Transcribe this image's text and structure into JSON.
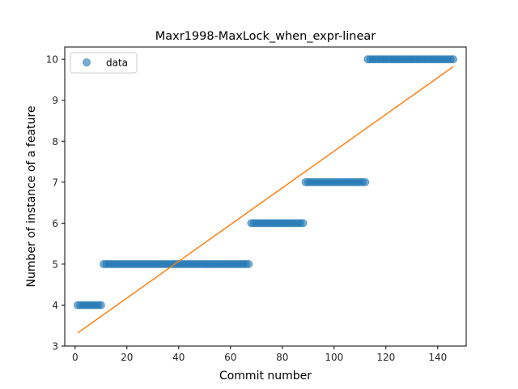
{
  "chart_data": {
    "type": "scatter",
    "title": "Maxr1998-MaxLock_when_expr-linear",
    "xlabel": "Commit number",
    "ylabel": "Number of instance of a feature",
    "xlim": [
      -4,
      151
    ],
    "ylim": [
      3,
      10.3
    ],
    "xticks": [
      0,
      20,
      40,
      60,
      80,
      100,
      120,
      140
    ],
    "yticks": [
      3,
      4,
      5,
      6,
      7,
      8,
      9,
      10
    ],
    "grid": false,
    "legend": {
      "position": "top-left",
      "entries": [
        "data"
      ]
    },
    "colors": {
      "points": "#1f77b4",
      "fit": "#ff7f0e"
    },
    "series": [
      {
        "name": "data",
        "kind": "points",
        "segments": [
          {
            "x_start": 1,
            "x_end": 10,
            "y": 4
          },
          {
            "x_start": 11,
            "x_end": 67,
            "y": 5
          },
          {
            "x_start": 68,
            "x_end": 88,
            "y": 6
          },
          {
            "x_start": 89,
            "x_end": 112,
            "y": 7
          },
          {
            "x_start": 113,
            "x_end": 146,
            "y": 10
          }
        ]
      },
      {
        "kind": "fit-line",
        "x": [
          1,
          146
        ],
        "y": [
          3.32,
          9.82
        ]
      }
    ]
  }
}
